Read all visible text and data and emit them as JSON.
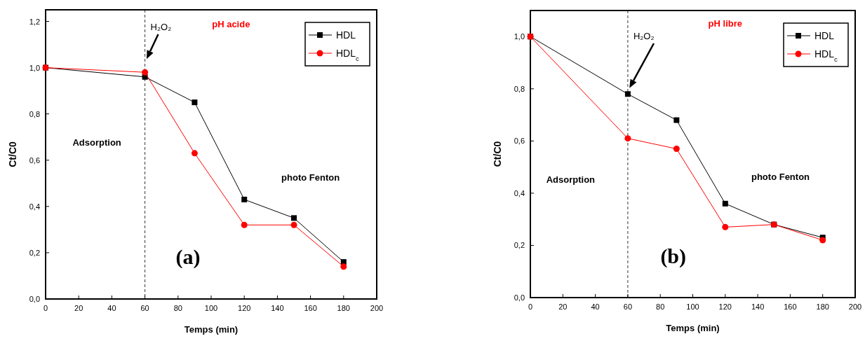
{
  "chart_data": [
    {
      "type": "line",
      "xlabel": "Temps (min)",
      "ylabel": "Ct/C0",
      "x": [
        0,
        60,
        90,
        120,
        150,
        180
      ],
      "series": [
        {
          "name": "HDL",
          "color": "#000000",
          "marker": "square",
          "values": [
            1.0,
            0.96,
            0.85,
            0.43,
            0.35,
            0.16
          ]
        },
        {
          "name": "HDL$_{c}$",
          "color": "#ff0000",
          "marker": "circle",
          "values": [
            1.0,
            0.98,
            0.63,
            0.32,
            0.32,
            0.14
          ]
        }
      ],
      "xlim": [
        0,
        200
      ],
      "xticks": [
        0,
        20,
        40,
        60,
        80,
        100,
        120,
        140,
        160,
        180,
        200
      ],
      "ylim": [
        0,
        1.25
      ],
      "yticks": [
        {
          "value": 0,
          "label": "0,0"
        },
        {
          "value": 0.2,
          "label": "0,2"
        },
        {
          "value": 0.4,
          "label": "0,4"
        },
        {
          "value": 0.6,
          "label": "0,6"
        },
        {
          "value": 0.8,
          "label": "0,8"
        },
        {
          "value": 1.0,
          "label": "1,0"
        },
        {
          "value": 1.2,
          "label": "1,2"
        }
      ],
      "ref_lines": [
        {
          "axis": "x",
          "value": 60,
          "label": "H₂O₂",
          "line_style": "dashed"
        }
      ],
      "annotations": [
        "pH acide",
        "Adsorption",
        "photo Fenton",
        "(a)"
      ],
      "legend": "top right",
      "grid": false,
      "line_style": "solid"
    },
    {
      "type": "line",
      "xlabel": "Temps (min)",
      "ylabel": "Ct/C0",
      "x": [
        0,
        60,
        90,
        120,
        150,
        180
      ],
      "series": [
        {
          "name": "HDL",
          "color": "#000000",
          "marker": "square",
          "values": [
            1.0,
            0.78,
            0.68,
            0.36,
            0.28,
            0.23
          ]
        },
        {
          "name": "HDL$_{c}$",
          "color": "#ff0000",
          "marker": "circle",
          "values": [
            1.0,
            0.61,
            0.57,
            0.27,
            0.28,
            0.22
          ]
        }
      ],
      "xlim": [
        0,
        200
      ],
      "xticks": [
        0,
        20,
        40,
        60,
        80,
        100,
        120,
        140,
        160,
        180,
        200
      ],
      "ylim": [
        0,
        1.1
      ],
      "yticks": [
        {
          "value": 0,
          "label": "0,0"
        },
        {
          "value": 0.2,
          "label": "0,2"
        },
        {
          "value": 0.4,
          "label": "0,4"
        },
        {
          "value": 0.6,
          "label": "0,6"
        },
        {
          "value": 0.8,
          "label": "0,8"
        },
        {
          "value": 1.0,
          "label": "1,0"
        }
      ],
      "ref_lines": [
        {
          "axis": "x",
          "value": 60,
          "label": "H₂O₂",
          "line_style": "dashed"
        }
      ],
      "annotations": [
        "pH libre",
        "Adsorption",
        "photo Fenton",
        "(b)"
      ],
      "legend": "top right",
      "grid": false,
      "line_style": "solid"
    }
  ]
}
